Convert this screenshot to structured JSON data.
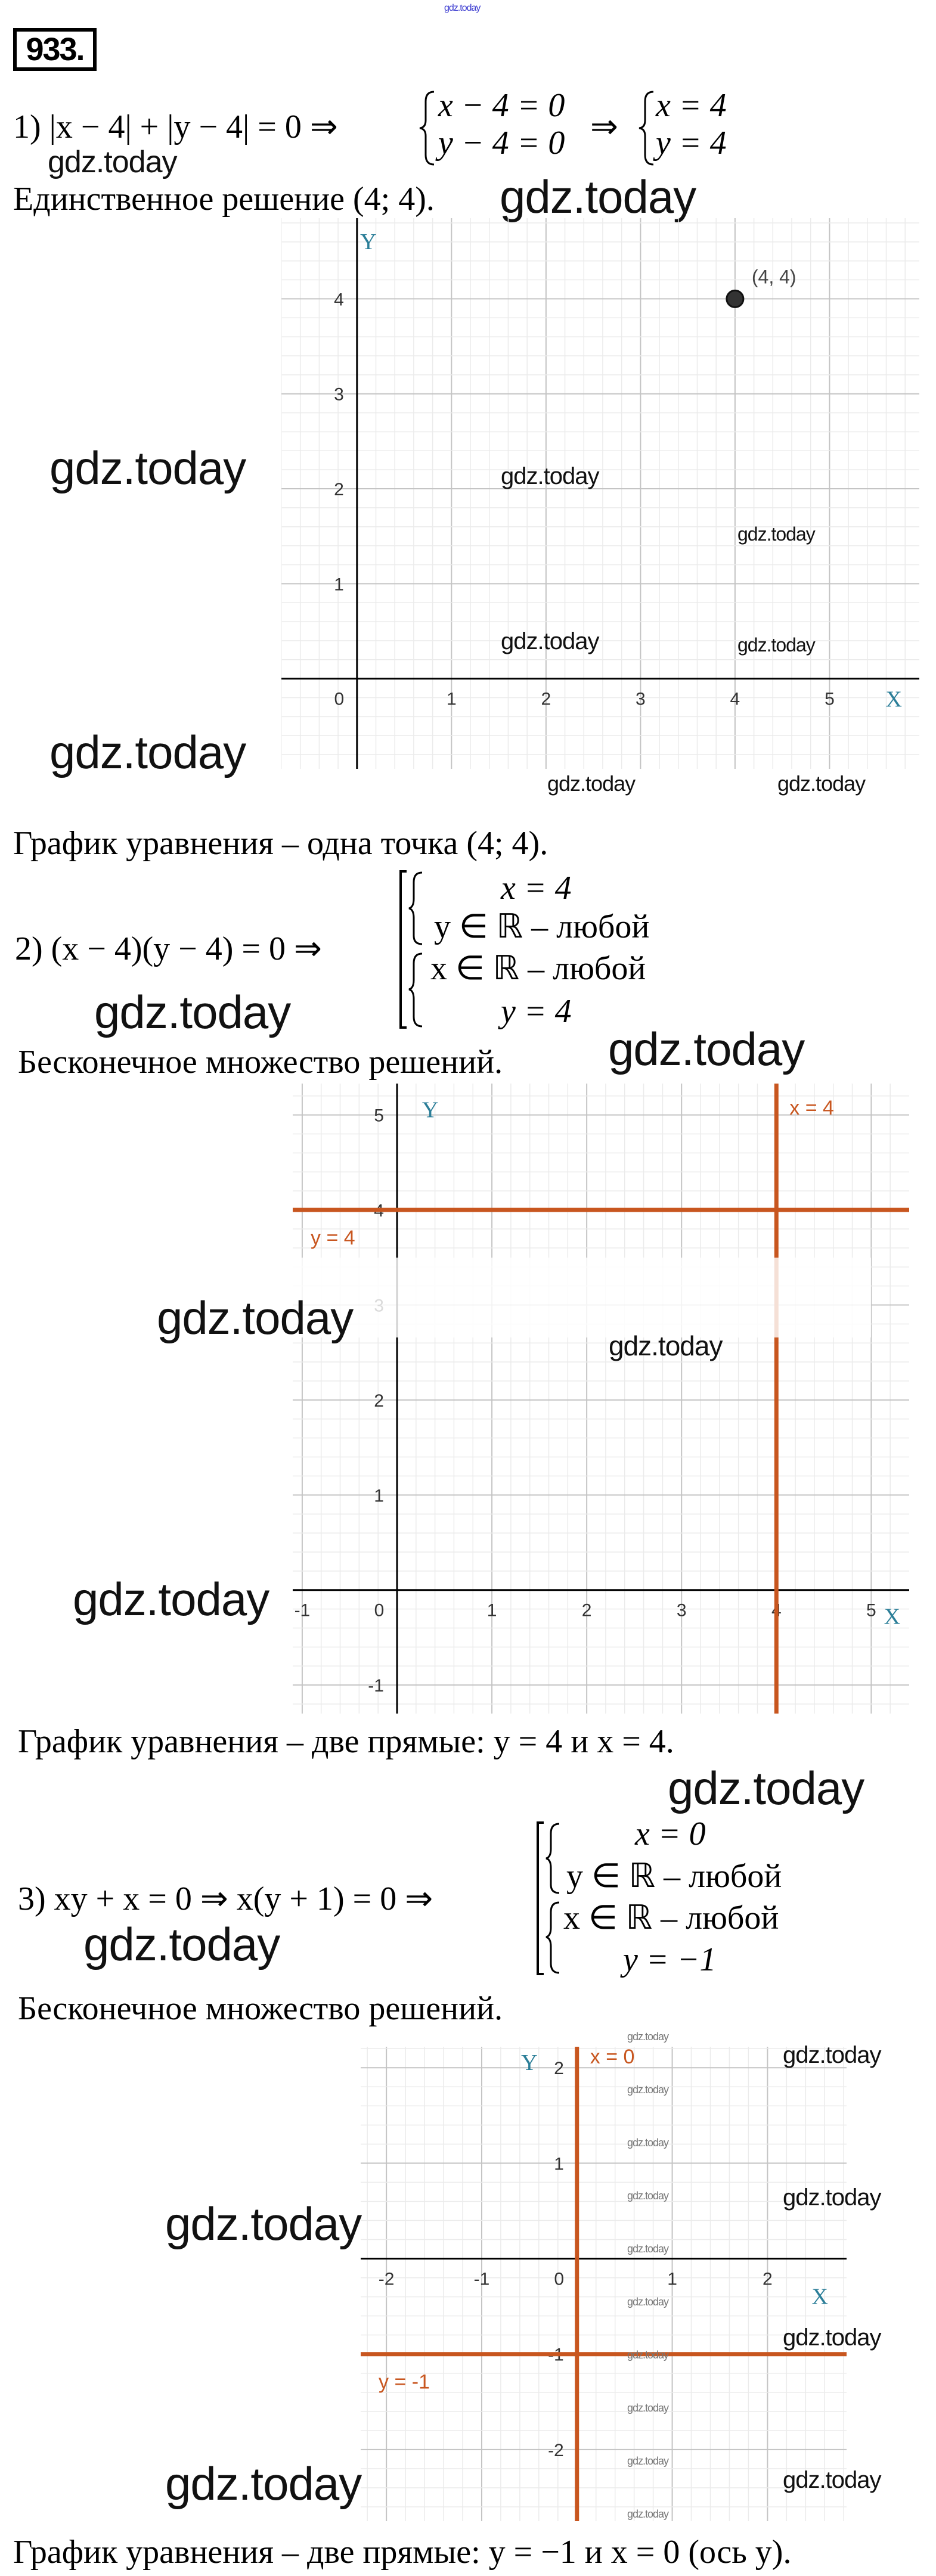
{
  "watermark": "gdz.today",
  "exercise_number": "933.",
  "part1": {
    "equation": "1) |x − 4| + |y − 4| = 0 ⇒",
    "system_a": [
      "x − 4 = 0",
      "y − 4 = 0"
    ],
    "arrow": "⇒",
    "system_b": [
      "x = 4",
      "y = 4"
    ],
    "result": "Единственное решение (4; 4).",
    "conclusion": "График уравнения – одна точка (4; 4)."
  },
  "part2": {
    "equation": "2) (x − 4)(y − 4) = 0 ⇒",
    "rows": [
      "x = 4",
      "y ∈ ℝ – любой",
      "x ∈ ℝ – любой",
      "y = 4"
    ],
    "result": "Бесконечное множество решений.",
    "conclusion": "График уравнения – две прямые: y = 4 и x = 4."
  },
  "part3": {
    "equation": "3) xy + x = 0 ⇒ x(y + 1) = 0 ⇒",
    "rows": [
      "x = 0",
      "y ∈ ℝ – любой",
      "x ∈ ℝ – любой",
      "y = −1"
    ],
    "result": "Бесконечное множество решений.",
    "conclusion": "График уравнения – две прямые: y = −1 и x = 0 (ось y)."
  },
  "colors": {
    "line": "#c8561f",
    "axis": "#000000",
    "grid_major": "#c4c4c4",
    "grid_minor": "#ebebeb",
    "axis_letter": "#2b7e98"
  },
  "chart_data": [
    {
      "type": "scatter",
      "xlabel": "X",
      "ylabel": "Y",
      "xlim": [
        -0.8,
        5.95
      ],
      "ylim": [
        -0.95,
        4.85
      ],
      "x_ticks": [
        "0",
        "1",
        "2",
        "3",
        "4",
        "5"
      ],
      "y_ticks": [
        "1",
        "2",
        "3",
        "4"
      ],
      "grid": true,
      "points": [
        {
          "x": 4,
          "y": 4,
          "label": "(4, 4)"
        }
      ],
      "lines": []
    },
    {
      "type": "line",
      "xlabel": "X",
      "ylabel": "Y",
      "xlim": [
        -1.1,
        5.4
      ],
      "ylim": [
        -1.3,
        5.33
      ],
      "x_ticks": [
        "-1",
        "0",
        "1",
        "2",
        "3",
        "4",
        "5"
      ],
      "y_ticks": [
        "-1",
        "1",
        "2",
        "3",
        "4",
        "5"
      ],
      "grid": true,
      "points": [],
      "lines": [
        {
          "orientation": "horizontal",
          "value": 4,
          "label": "y = 4"
        },
        {
          "orientation": "vertical",
          "value": 4,
          "label": "x = 4"
        }
      ]
    },
    {
      "type": "line",
      "xlabel": "X",
      "ylabel": "Y",
      "xlim": [
        -2.27,
        2.83
      ],
      "ylim": [
        -2.75,
        2.22
      ],
      "x_ticks": [
        "-2",
        "-1",
        "0",
        "1",
        "2"
      ],
      "y_ticks": [
        "-2",
        "-1",
        "1",
        "2"
      ],
      "grid": true,
      "points": [],
      "lines": [
        {
          "orientation": "horizontal",
          "value": -1,
          "label": "y = -1"
        },
        {
          "orientation": "vertical",
          "value": 0,
          "label": "x = 0"
        }
      ]
    }
  ]
}
